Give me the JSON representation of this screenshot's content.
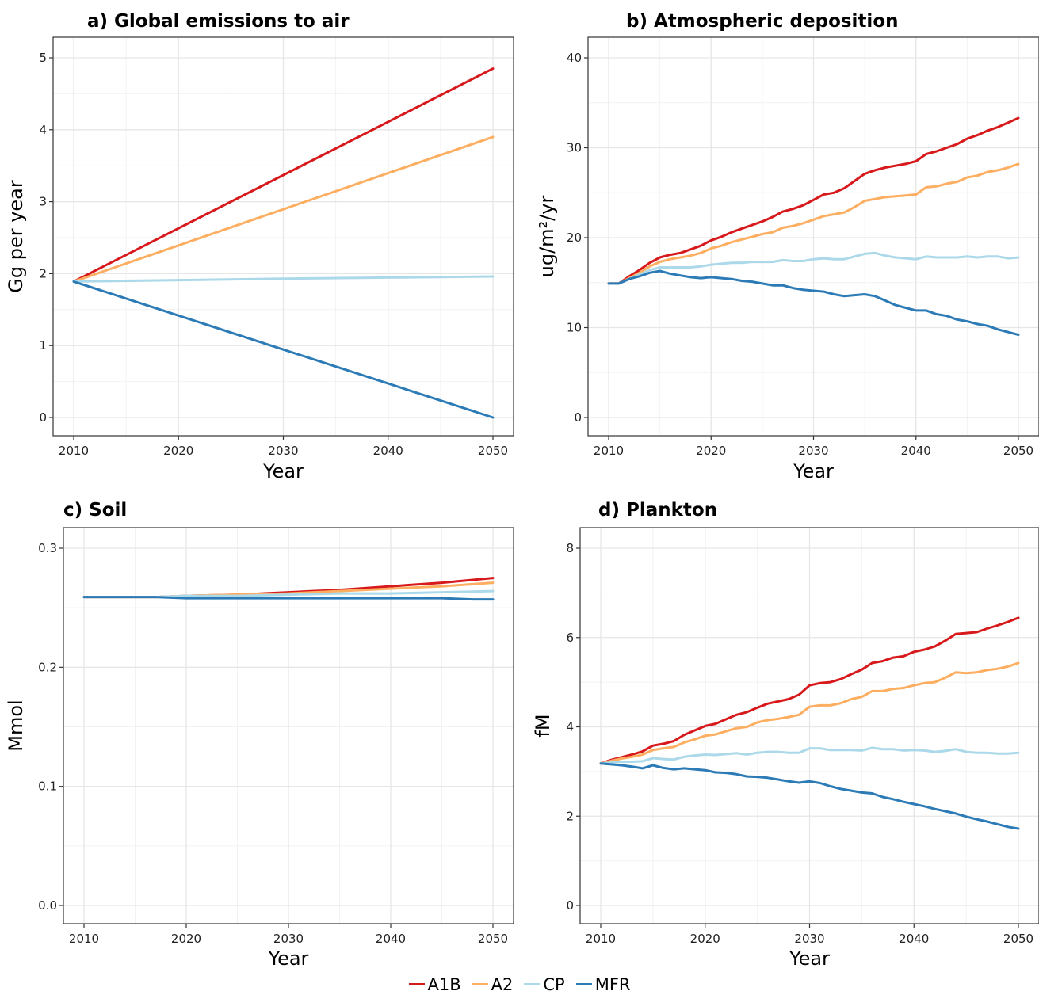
{
  "chart_data": [
    {
      "type": "line",
      "title": "a) Global emissions to air",
      "xlabel": "Year",
      "ylabel": "Gg per year",
      "xlim": [
        2010,
        2050
      ],
      "ylim": [
        0,
        5
      ],
      "xticks": [
        2010,
        2020,
        2030,
        2040,
        2050
      ],
      "yticks": [
        0,
        1,
        2,
        3,
        4,
        5
      ],
      "grid": true,
      "series": [
        {
          "name": "A1B",
          "x": [
            2010,
            2050
          ],
          "y": [
            1.89,
            4.85
          ]
        },
        {
          "name": "A2",
          "x": [
            2010,
            2050
          ],
          "y": [
            1.89,
            3.9
          ]
        },
        {
          "name": "CP",
          "x": [
            2010,
            2020,
            2030,
            2040,
            2050
          ],
          "y": [
            1.89,
            1.91,
            1.93,
            1.945,
            1.96
          ]
        },
        {
          "name": "MFR",
          "x": [
            2010,
            2050
          ],
          "y": [
            1.89,
            0.0
          ]
        }
      ]
    },
    {
      "type": "line",
      "title": "b) Atmospheric deposition",
      "xlabel": "Year",
      "ylabel": "ug/m²/yr",
      "xlim": [
        2010,
        2050
      ],
      "ylim": [
        0,
        40
      ],
      "xticks": [
        2010,
        2020,
        2030,
        2040,
        2050
      ],
      "yticks": [
        0,
        10,
        20,
        30,
        40
      ],
      "grid": true,
      "series": [
        {
          "name": "A1B",
          "x": [
            2010,
            2011,
            2012,
            2013,
            2014,
            2015,
            2016,
            2017,
            2018,
            2019,
            2020,
            2021,
            2022,
            2023,
            2024,
            2025,
            2026,
            2027,
            2028,
            2029,
            2030,
            2031,
            2032,
            2033,
            2034,
            2035,
            2036,
            2037,
            2038,
            2039,
            2040,
            2041,
            2042,
            2043,
            2044,
            2045,
            2046,
            2047,
            2048,
            2049,
            2050
          ],
          "y": [
            14.9,
            14.9,
            15.7,
            16.4,
            17.2,
            17.8,
            18.1,
            18.3,
            18.7,
            19.1,
            19.7,
            20.1,
            20.6,
            21.0,
            21.4,
            21.8,
            22.3,
            22.9,
            23.2,
            23.6,
            24.2,
            24.8,
            25.0,
            25.5,
            26.3,
            27.1,
            27.5,
            27.8,
            28.0,
            28.2,
            28.5,
            29.3,
            29.6,
            30.0,
            30.4,
            31.0,
            31.4,
            31.9,
            32.3,
            32.8,
            33.3
          ]
        },
        {
          "name": "A2",
          "x": [
            2010,
            2011,
            2012,
            2013,
            2014,
            2015,
            2016,
            2017,
            2018,
            2019,
            2020,
            2021,
            2022,
            2023,
            2024,
            2025,
            2026,
            2027,
            2028,
            2029,
            2030,
            2031,
            2032,
            2033,
            2034,
            2035,
            2036,
            2037,
            2038,
            2039,
            2040,
            2041,
            2042,
            2043,
            2044,
            2045,
            2046,
            2047,
            2048,
            2049,
            2050
          ],
          "y": [
            14.9,
            14.9,
            15.5,
            16.1,
            16.8,
            17.3,
            17.6,
            17.8,
            18.0,
            18.3,
            18.8,
            19.1,
            19.5,
            19.8,
            20.1,
            20.4,
            20.6,
            21.1,
            21.3,
            21.6,
            22.0,
            22.4,
            22.6,
            22.8,
            23.4,
            24.1,
            24.3,
            24.5,
            24.6,
            24.7,
            24.8,
            25.6,
            25.7,
            26.0,
            26.2,
            26.7,
            26.9,
            27.3,
            27.5,
            27.8,
            28.2
          ]
        },
        {
          "name": "CP",
          "x": [
            2010,
            2011,
            2012,
            2013,
            2014,
            2015,
            2016,
            2017,
            2018,
            2019,
            2020,
            2021,
            2022,
            2023,
            2024,
            2025,
            2026,
            2027,
            2028,
            2029,
            2030,
            2031,
            2032,
            2033,
            2034,
            2035,
            2036,
            2037,
            2038,
            2039,
            2040,
            2041,
            2042,
            2043,
            2044,
            2045,
            2046,
            2047,
            2048,
            2049,
            2050
          ],
          "y": [
            14.9,
            14.9,
            15.4,
            15.9,
            16.4,
            16.7,
            16.7,
            16.7,
            16.7,
            16.8,
            17.0,
            17.1,
            17.2,
            17.2,
            17.3,
            17.3,
            17.3,
            17.5,
            17.4,
            17.4,
            17.6,
            17.7,
            17.6,
            17.6,
            17.9,
            18.2,
            18.3,
            18.0,
            17.8,
            17.7,
            17.6,
            17.9,
            17.8,
            17.8,
            17.8,
            17.9,
            17.8,
            17.9,
            17.9,
            17.7,
            17.8
          ]
        },
        {
          "name": "MFR",
          "x": [
            2010,
            2011,
            2012,
            2013,
            2014,
            2015,
            2016,
            2017,
            2018,
            2019,
            2020,
            2021,
            2022,
            2023,
            2024,
            2025,
            2026,
            2027,
            2028,
            2029,
            2030,
            2031,
            2032,
            2033,
            2034,
            2035,
            2036,
            2037,
            2038,
            2039,
            2040,
            2041,
            2042,
            2043,
            2044,
            2045,
            2046,
            2047,
            2048,
            2049,
            2050
          ],
          "y": [
            14.9,
            14.9,
            15.4,
            15.7,
            16.1,
            16.3,
            16.0,
            15.8,
            15.6,
            15.5,
            15.6,
            15.5,
            15.4,
            15.2,
            15.1,
            14.9,
            14.7,
            14.7,
            14.4,
            14.2,
            14.1,
            14.0,
            13.7,
            13.5,
            13.6,
            13.7,
            13.5,
            13.0,
            12.5,
            12.2,
            11.9,
            11.9,
            11.5,
            11.3,
            10.9,
            10.7,
            10.4,
            10.2,
            9.8,
            9.5,
            9.2
          ]
        }
      ]
    },
    {
      "type": "line",
      "title": "c) Soil",
      "xlabel": "Year",
      "ylabel": "Mmol",
      "xlim": [
        2010,
        2050
      ],
      "ylim": [
        0.0,
        0.3
      ],
      "xticks": [
        2010,
        2020,
        2030,
        2040,
        2050
      ],
      "yticks": [
        0.0,
        0.1,
        0.2,
        0.3
      ],
      "ytick_labels": [
        "0.0",
        "0.1",
        "0.2",
        "0.3"
      ],
      "grid": true,
      "series": [
        {
          "name": "A1B",
          "x": [
            2010,
            2017,
            2020,
            2025,
            2030,
            2035,
            2040,
            2045,
            2050
          ],
          "y": [
            0.259,
            0.259,
            0.26,
            0.261,
            0.263,
            0.265,
            0.268,
            0.271,
            0.275
          ]
        },
        {
          "name": "A2",
          "x": [
            2010,
            2017,
            2020,
            2025,
            2030,
            2035,
            2040,
            2045,
            2050
          ],
          "y": [
            0.259,
            0.259,
            0.26,
            0.261,
            0.262,
            0.264,
            0.266,
            0.268,
            0.271
          ]
        },
        {
          "name": "CP",
          "x": [
            2010,
            2017,
            2020,
            2025,
            2030,
            2035,
            2040,
            2045,
            2050
          ],
          "y": [
            0.259,
            0.259,
            0.26,
            0.26,
            0.261,
            0.262,
            0.262,
            0.263,
            0.264
          ]
        },
        {
          "name": "MFR",
          "x": [
            2010,
            2017,
            2020,
            2025,
            2030,
            2035,
            2040,
            2045,
            2048,
            2050
          ],
          "y": [
            0.259,
            0.259,
            0.258,
            0.258,
            0.258,
            0.258,
            0.258,
            0.258,
            0.257,
            0.257
          ]
        }
      ]
    },
    {
      "type": "line",
      "title": "d) Plankton",
      "xlabel": "Year",
      "ylabel": "fM",
      "xlim": [
        2010,
        2050
      ],
      "ylim": [
        0,
        8
      ],
      "xticks": [
        2010,
        2020,
        2030,
        2040,
        2050
      ],
      "yticks": [
        0,
        2,
        4,
        6,
        8
      ],
      "grid": true,
      "series": [
        {
          "name": "A1B",
          "x": [
            2010,
            2011,
            2012,
            2013,
            2014,
            2015,
            2016,
            2017,
            2018,
            2019,
            2020,
            2021,
            2022,
            2023,
            2024,
            2025,
            2026,
            2027,
            2028,
            2029,
            2030,
            2031,
            2032,
            2033,
            2034,
            2035,
            2036,
            2037,
            2038,
            2039,
            2040,
            2041,
            2042,
            2043,
            2044,
            2045,
            2046,
            2047,
            2048,
            2049,
            2050
          ],
          "y": [
            3.18,
            3.26,
            3.32,
            3.38,
            3.45,
            3.58,
            3.62,
            3.68,
            3.82,
            3.92,
            4.02,
            4.07,
            4.17,
            4.27,
            4.33,
            4.43,
            4.52,
            4.57,
            4.62,
            4.72,
            4.93,
            4.98,
            5.0,
            5.07,
            5.18,
            5.28,
            5.43,
            5.47,
            5.55,
            5.58,
            5.68,
            5.73,
            5.8,
            5.93,
            6.08,
            6.1,
            6.12,
            6.2,
            6.27,
            6.35,
            6.44
          ]
        },
        {
          "name": "A2",
          "x": [
            2010,
            2011,
            2012,
            2013,
            2014,
            2015,
            2016,
            2017,
            2018,
            2019,
            2020,
            2021,
            2022,
            2023,
            2024,
            2025,
            2026,
            2027,
            2028,
            2029,
            2030,
            2031,
            2032,
            2033,
            2034,
            2035,
            2036,
            2037,
            2038,
            2039,
            2040,
            2041,
            2042,
            2043,
            2044,
            2045,
            2046,
            2047,
            2048,
            2049,
            2050
          ],
          "y": [
            3.18,
            3.24,
            3.29,
            3.33,
            3.38,
            3.48,
            3.52,
            3.55,
            3.65,
            3.72,
            3.8,
            3.83,
            3.9,
            3.97,
            4.0,
            4.1,
            4.15,
            4.18,
            4.22,
            4.27,
            4.45,
            4.48,
            4.48,
            4.53,
            4.62,
            4.67,
            4.8,
            4.8,
            4.85,
            4.87,
            4.93,
            4.98,
            5.0,
            5.1,
            5.22,
            5.2,
            5.22,
            5.27,
            5.3,
            5.35,
            5.43
          ]
        },
        {
          "name": "CP",
          "x": [
            2010,
            2011,
            2012,
            2013,
            2014,
            2015,
            2016,
            2017,
            2018,
            2019,
            2020,
            2021,
            2022,
            2023,
            2024,
            2025,
            2026,
            2027,
            2028,
            2029,
            2030,
            2031,
            2032,
            2033,
            2034,
            2035,
            2036,
            2037,
            2038,
            2039,
            2040,
            2041,
            2042,
            2043,
            2044,
            2045,
            2046,
            2047,
            2048,
            2049,
            2050
          ],
          "y": [
            3.18,
            3.2,
            3.22,
            3.22,
            3.23,
            3.3,
            3.28,
            3.27,
            3.33,
            3.36,
            3.38,
            3.37,
            3.39,
            3.41,
            3.38,
            3.42,
            3.44,
            3.44,
            3.42,
            3.42,
            3.52,
            3.52,
            3.48,
            3.48,
            3.48,
            3.47,
            3.53,
            3.5,
            3.5,
            3.47,
            3.48,
            3.47,
            3.44,
            3.46,
            3.5,
            3.44,
            3.42,
            3.42,
            3.4,
            3.4,
            3.42
          ]
        },
        {
          "name": "MFR",
          "x": [
            2010,
            2011,
            2012,
            2013,
            2014,
            2015,
            2016,
            2017,
            2018,
            2019,
            2020,
            2021,
            2022,
            2023,
            2024,
            2025,
            2026,
            2027,
            2028,
            2029,
            2030,
            2031,
            2032,
            2033,
            2034,
            2035,
            2036,
            2037,
            2038,
            2039,
            2040,
            2041,
            2042,
            2043,
            2044,
            2045,
            2046,
            2047,
            2048,
            2049,
            2050
          ],
          "y": [
            3.18,
            3.16,
            3.14,
            3.11,
            3.07,
            3.14,
            3.08,
            3.05,
            3.07,
            3.05,
            3.03,
            2.98,
            2.97,
            2.94,
            2.89,
            2.88,
            2.86,
            2.82,
            2.78,
            2.75,
            2.78,
            2.74,
            2.67,
            2.61,
            2.57,
            2.53,
            2.51,
            2.43,
            2.38,
            2.32,
            2.27,
            2.22,
            2.16,
            2.11,
            2.06,
            1.99,
            1.93,
            1.88,
            1.82,
            1.76,
            1.72
          ]
        }
      ]
    }
  ],
  "legend": {
    "position": "bottom",
    "items": [
      {
        "label": "A1B",
        "color": "#d7191c"
      },
      {
        "label": "A2",
        "color": "#fdae61"
      },
      {
        "label": "CP",
        "color": "#abd9e9"
      },
      {
        "label": "MFR",
        "color": "#2c7bb6"
      }
    ]
  },
  "series_colors": {
    "A1B": "#d7191c",
    "A2": "#fdae61",
    "CP": "#abd9e9",
    "MFR": "#2c7bb6"
  }
}
